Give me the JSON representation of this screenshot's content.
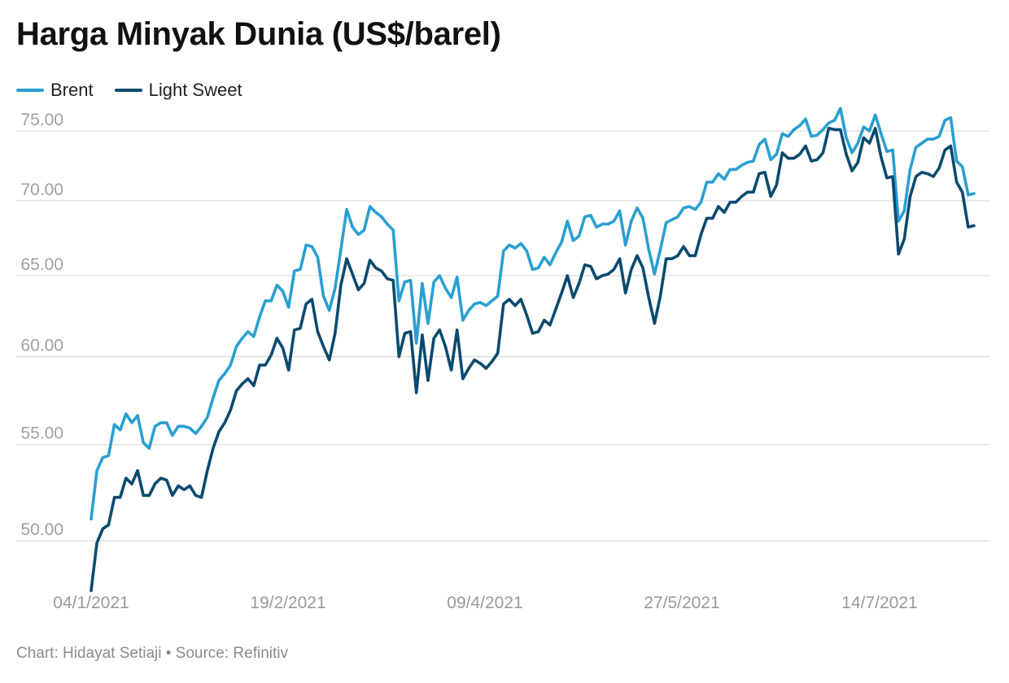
{
  "title": "Harga Minyak Dunia (US$/barel)",
  "footer": "Chart: Hidayat Setiaji • Source: Refinitiv",
  "colors": {
    "brent": "#2a9fd0",
    "wti": "#0a4a6e",
    "grid": "#dddddd",
    "tick": "#a0a0a0"
  },
  "legend": [
    {
      "label": "Brent",
      "color": "#2a9fd0"
    },
    {
      "label": "Light Sweet",
      "color": "#0a4a6e"
    }
  ],
  "chart_data": {
    "type": "line",
    "title": "Harga Minyak Dunia (US$/barel)",
    "xlabel": "",
    "ylabel": "",
    "x_ticks": [
      "04/1/2021",
      "19/2/2021",
      "09/4/2021",
      "27/5/2021",
      "14/7/2021"
    ],
    "y_ticks": [
      "50.00",
      "55.00",
      "60.00",
      "65.00",
      "70.00",
      "75.00"
    ],
    "ylim": [
      48.0,
      76.9
    ],
    "y_scale": "log",
    "grid": "horizontal",
    "legend_position": "top-left",
    "series": [
      {
        "name": "Brent",
        "color": "#2a9fd0",
        "values": [
          51.1,
          53.6,
          54.3,
          54.4,
          56.1,
          55.8,
          56.7,
          56.2,
          56.6,
          55.1,
          54.8,
          56.0,
          56.2,
          56.2,
          55.5,
          56.0,
          56.0,
          55.9,
          55.6,
          56.0,
          56.5,
          57.6,
          58.6,
          59.0,
          59.5,
          60.6,
          61.1,
          61.5,
          61.2,
          62.4,
          63.4,
          63.4,
          64.4,
          64.0,
          63.0,
          65.3,
          65.4,
          67.0,
          66.9,
          66.2,
          63.7,
          62.8,
          64.2,
          66.7,
          69.4,
          68.2,
          67.7,
          68.0,
          69.6,
          69.2,
          68.9,
          68.4,
          68.0,
          63.4,
          64.6,
          64.7,
          60.8,
          64.5,
          62.0,
          64.6,
          65.0,
          64.2,
          63.6,
          64.9,
          62.2,
          62.8,
          63.2,
          63.3,
          63.1,
          63.4,
          63.7,
          66.6,
          67.0,
          66.8,
          67.1,
          66.6,
          65.4,
          65.5,
          66.2,
          65.7,
          66.5,
          67.2,
          68.6,
          67.3,
          67.6,
          68.9,
          69.0,
          68.2,
          68.4,
          68.4,
          68.6,
          69.3,
          67.0,
          68.6,
          69.5,
          68.8,
          66.7,
          65.1,
          66.7,
          68.5,
          68.7,
          68.9,
          69.5,
          69.6,
          69.4,
          69.9,
          71.3,
          71.3,
          71.9,
          71.5,
          72.2,
          72.2,
          72.5,
          72.7,
          72.8,
          74.0,
          74.4,
          72.9,
          73.3,
          74.8,
          74.6,
          75.1,
          75.4,
          75.9,
          74.6,
          74.7,
          75.1,
          75.6,
          75.8,
          76.7,
          74.5,
          73.4,
          74.1,
          75.3,
          75.0,
          76.2,
          74.8,
          73.5,
          73.6,
          68.6,
          69.3,
          72.2,
          73.8,
          74.1,
          74.4,
          74.4,
          74.6,
          75.8,
          76.0,
          72.8,
          72.4,
          70.4,
          70.5
        ]
      },
      {
        "name": "Light Sweet",
        "color": "#0a4a6e",
        "values": [
          47.6,
          49.9,
          50.6,
          50.8,
          52.2,
          52.2,
          53.2,
          52.9,
          53.6,
          52.3,
          52.3,
          52.9,
          53.2,
          53.1,
          52.3,
          52.8,
          52.6,
          52.8,
          52.3,
          52.2,
          53.6,
          54.8,
          55.7,
          56.2,
          56.9,
          58.0,
          58.4,
          58.7,
          58.3,
          59.5,
          59.5,
          60.1,
          61.1,
          60.5,
          59.2,
          61.6,
          61.7,
          63.2,
          63.5,
          61.5,
          60.6,
          59.8,
          61.4,
          64.4,
          66.1,
          65.1,
          64.1,
          64.5,
          66.0,
          65.5,
          65.3,
          64.8,
          64.7,
          60.0,
          61.4,
          61.5,
          57.9,
          61.3,
          58.6,
          61.1,
          61.6,
          60.6,
          59.2,
          61.6,
          58.7,
          59.3,
          59.8,
          59.6,
          59.3,
          59.7,
          60.2,
          63.2,
          63.5,
          63.1,
          63.5,
          62.5,
          61.4,
          61.5,
          62.2,
          61.9,
          62.9,
          63.9,
          65.0,
          63.6,
          64.5,
          65.7,
          65.6,
          64.8,
          65.0,
          65.1,
          65.4,
          66.1,
          63.9,
          65.4,
          66.3,
          65.5,
          63.6,
          62.0,
          63.7,
          66.1,
          66.1,
          66.3,
          66.9,
          66.3,
          66.3,
          67.7,
          68.8,
          68.8,
          69.6,
          69.2,
          69.9,
          69.9,
          70.3,
          70.6,
          70.6,
          71.9,
          72.0,
          70.3,
          71.1,
          73.4,
          73.0,
          73.0,
          73.3,
          73.9,
          72.8,
          72.9,
          73.4,
          75.2,
          75.1,
          75.1,
          73.3,
          72.1,
          72.7,
          74.5,
          74.1,
          75.2,
          73.1,
          71.6,
          71.7,
          66.4,
          67.4,
          70.3,
          71.7,
          72.0,
          71.9,
          71.7,
          72.3,
          73.6,
          73.9,
          71.3,
          70.6,
          68.2,
          68.3
        ]
      }
    ]
  }
}
